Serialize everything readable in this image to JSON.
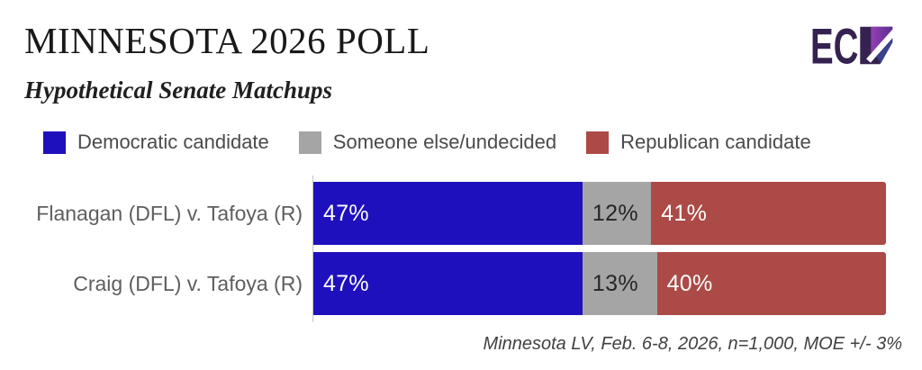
{
  "header": {
    "title": "MINNESOTA 2026 POLL",
    "subtitle": "Hypothetical Senate Matchups",
    "logo_text": "EC"
  },
  "legend": {
    "items": [
      {
        "label": "Democratic candidate",
        "color": "#1f10bd"
      },
      {
        "label": "Someone else/undecided",
        "color": "#a5a5a5"
      },
      {
        "label": "Republican candidate",
        "color": "#ab4a47"
      }
    ]
  },
  "chart_data": {
    "type": "bar",
    "orientation": "horizontal",
    "stacked": true,
    "grid": false,
    "legend_position": "top",
    "xlim": [
      0,
      100
    ],
    "value_suffix": "%",
    "categories": [
      "Flanagan (DFL) v. Tafoya (R)",
      "Craig (DFL) v. Tafoya (R)"
    ],
    "series": [
      {
        "name": "Democratic candidate",
        "color": "#1f10bd",
        "label_color": "#ffffff",
        "values": [
          47,
          47
        ]
      },
      {
        "name": "Someone else/undecided",
        "color": "#a5a5a5",
        "label_color": "#262626",
        "values": [
          12,
          13
        ]
      },
      {
        "name": "Republican candidate",
        "color": "#ab4a47",
        "label_color": "#ffffff",
        "values": [
          41,
          40
        ]
      }
    ]
  },
  "footnote": "Minnesota LV, Feb. 6-8, 2026, n=1,000, MOE +/- 3%"
}
